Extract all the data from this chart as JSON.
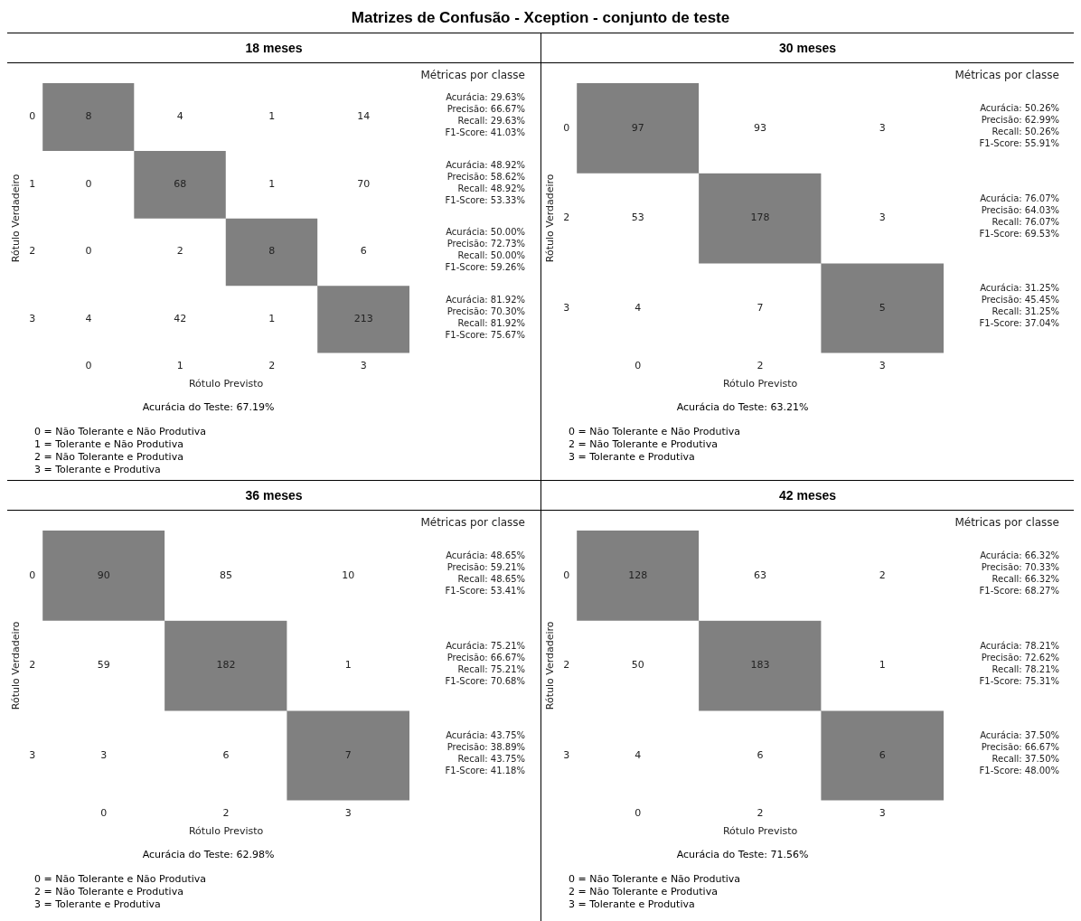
{
  "chart_data": [
    {
      "type": "heatmap",
      "title": "Matrizes de Confusão - Xception - conjunto de teste",
      "subtitle": "18 meses",
      "xlabel": "Rótulo Previsto",
      "ylabel": "Rótulo Verdadeiro",
      "color": "#808080",
      "data_labels": true,
      "categories": [
        "0",
        "1",
        "2",
        "3"
      ],
      "y_categories": [
        "0",
        "1",
        "2",
        "3"
      ],
      "cells": [
        [
          8,
          4,
          1,
          14
        ],
        [
          0,
          68,
          1,
          70
        ],
        [
          0,
          2,
          8,
          6
        ],
        [
          4,
          42,
          1,
          213
        ]
      ],
      "annotations": [
        "Métricas por classe",
        "Acurácia: 29.63%",
        "Precisão: 66.67%",
        "Recall: 29.63%",
        "F1-Score: 41.03%",
        "Acurácia: 48.92%",
        "Precisão: 58.62%",
        "Recall: 48.92%",
        "F1-Score: 53.33%",
        "Acurácia: 50.00%",
        "Precisão: 72.73%",
        "Recall: 50.00%",
        "F1-Score: 59.26%",
        "Acurácia: 81.92%",
        "Precisão: 70.30%",
        "Recall: 81.92%",
        "F1-Score: 75.67%",
        "Acurácia do Teste: 67.19%",
        "0 = Não Tolerante e Não Produtiva",
        "1 = Tolerante e Não Produtiva",
        "2 = Não Tolerante e Produtiva",
        "3 = Tolerante e Produtiva"
      ]
    },
    {
      "type": "heatmap",
      "subtitle": "30 meses",
      "xlabel": "Rótulo Previsto",
      "ylabel": "Rótulo Verdadeiro",
      "color": "#808080",
      "data_labels": true,
      "categories": [
        "0",
        "2",
        "3"
      ],
      "y_categories": [
        "0",
        "2",
        "3"
      ],
      "cells": [
        [
          97,
          93,
          3
        ],
        [
          53,
          178,
          3
        ],
        [
          4,
          7,
          5
        ]
      ],
      "annotations": [
        "Métricas por classe",
        "Acurácia: 50.26%",
        "Precisão: 62.99%",
        "Recall: 50.26%",
        "F1-Score: 55.91%",
        "Acurácia: 76.07%",
        "Precisão: 64.03%",
        "Recall: 76.07%",
        "F1-Score: 69.53%",
        "Acurácia: 31.25%",
        "Precisão: 45.45%",
        "Recall: 31.25%",
        "F1-Score: 37.04%",
        "Acurácia do Teste: 63.21%",
        "0 = Não Tolerante e Não Produtiva",
        "2 = Não Tolerante e Produtiva",
        "3 = Tolerante e Produtiva"
      ]
    },
    {
      "type": "heatmap",
      "subtitle": "36 meses",
      "xlabel": "Rótulo Previsto",
      "ylabel": "Rótulo Verdadeiro",
      "color": "#808080",
      "data_labels": true,
      "categories": [
        "0",
        "2",
        "3"
      ],
      "y_categories": [
        "0",
        "2",
        "3"
      ],
      "cells": [
        [
          90,
          85,
          10
        ],
        [
          59,
          182,
          1
        ],
        [
          3,
          6,
          7
        ]
      ],
      "annotations": [
        "Métricas por classe",
        "Acurácia: 48.65%",
        "Precisão: 59.21%",
        "Recall: 48.65%",
        "F1-Score: 53.41%",
        "Acurácia: 75.21%",
        "Precisão: 66.67%",
        "Recall: 75.21%",
        "F1-Score: 70.68%",
        "Acurácia: 43.75%",
        "Precisão: 38.89%",
        "Recall: 43.75%",
        "F1-Score: 41.18%",
        "Acurácia do Teste: 62.98%",
        "0 = Não Tolerante e Não Produtiva",
        "2 = Não Tolerante e Produtiva",
        "3 = Tolerante e Produtiva"
      ]
    },
    {
      "type": "heatmap",
      "subtitle": "42 meses",
      "xlabel": "Rótulo Previsto",
      "ylabel": "Rótulo Verdadeiro",
      "color": "#808080",
      "data_labels": true,
      "categories": [
        "0",
        "2",
        "3"
      ],
      "y_categories": [
        "0",
        "2",
        "3"
      ],
      "cells": [
        [
          128,
          63,
          2
        ],
        [
          50,
          183,
          1
        ],
        [
          4,
          6,
          6
        ]
      ],
      "annotations": [
        "Métricas por classe",
        "Acurácia: 66.32%",
        "Precisão: 70.33%",
        "Recall: 66.32%",
        "F1-Score: 68.27%",
        "Acurácia: 78.21%",
        "Precisão: 72.62%",
        "Recall: 78.21%",
        "F1-Score: 75.31%",
        "Acurácia: 37.50%",
        "Precisão: 66.67%",
        "Recall: 37.50%",
        "F1-Score: 48.00%",
        "Acurácia do Teste: 71.56%",
        "0 = Não Tolerante e Não Produtiva",
        "2 = Não Tolerante e Produtiva",
        "3 = Tolerante e Produtiva"
      ]
    }
  ]
}
